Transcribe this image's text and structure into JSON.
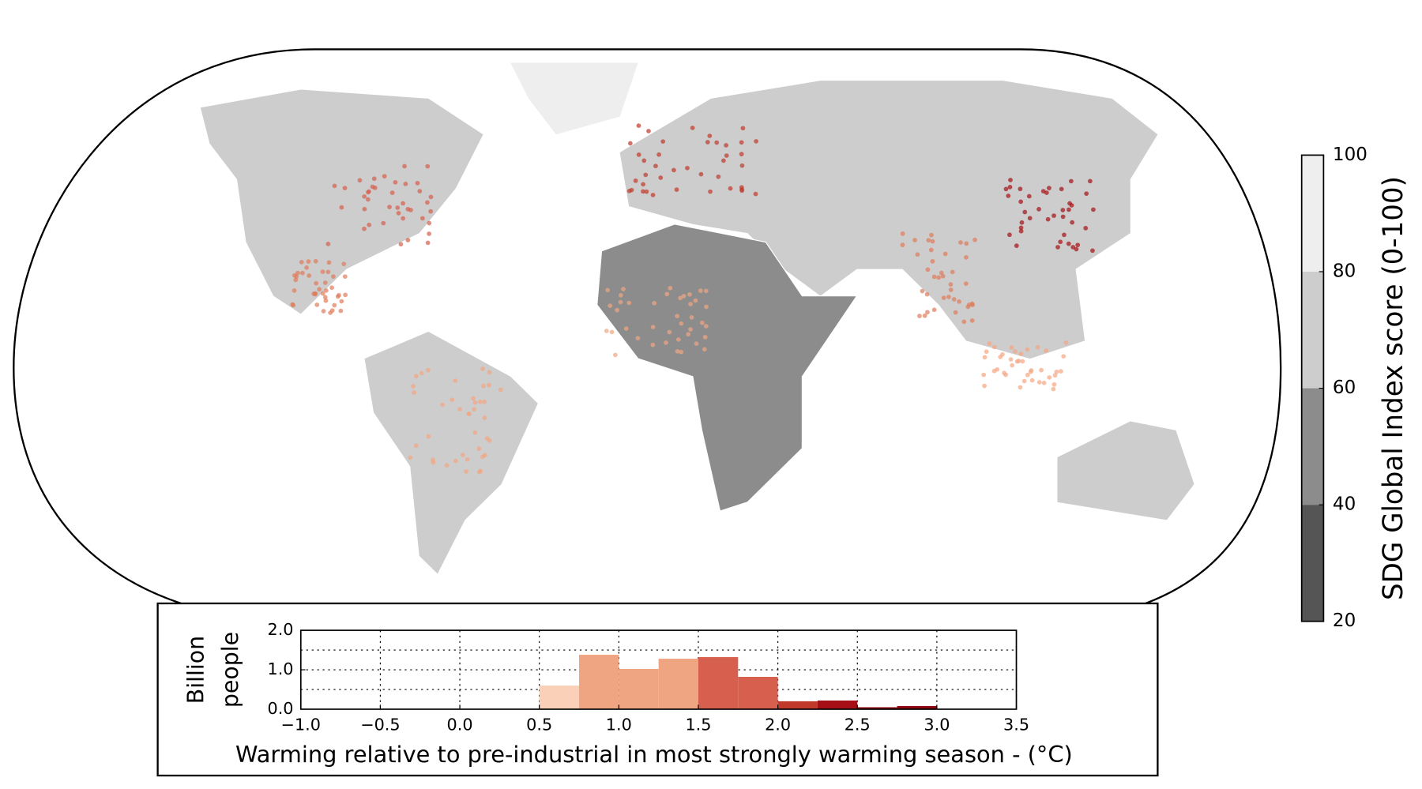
{
  "chart_data": [
    {
      "type": "histogram",
      "xlabel": "Warming relative to pre-industrial in most strongly warming season - (°C)",
      "ylabel": [
        "Billion",
        "people"
      ],
      "bins": [
        0.5,
        0.75,
        1.0,
        1.25,
        1.5,
        1.75,
        2.0,
        2.25,
        2.5,
        2.75,
        3.0
      ],
      "values": [
        0.6,
        1.38,
        1.02,
        1.28,
        1.32,
        0.82,
        0.2,
        0.22,
        0.05,
        0.08
      ],
      "colors": [
        "#fbd0b9",
        "#f0a582",
        "#f0a582",
        "#f0a582",
        "#d6604d",
        "#d6604d",
        "#c0392b",
        "#a50f15",
        "#8b0a0f",
        "#8b0a0f"
      ],
      "xlim": [
        -1.0,
        3.5
      ],
      "xticks": [
        {
          "value": -1.0,
          "label": "−1.0"
        },
        {
          "value": -0.5,
          "label": "−0.5"
        },
        {
          "value": 0.0,
          "label": "0.0"
        },
        {
          "value": 0.5,
          "label": "0.5"
        },
        {
          "value": 1.0,
          "label": "1.0"
        },
        {
          "value": 1.5,
          "label": "1.5"
        },
        {
          "value": 2.0,
          "label": "2.0"
        },
        {
          "value": 2.5,
          "label": "2.5"
        },
        {
          "value": 3.0,
          "label": "3.0"
        },
        {
          "value": 3.5,
          "label": "3.5"
        }
      ],
      "ylim": [
        0,
        2.0
      ],
      "yticks": [
        {
          "value": 0,
          "label": "0.0"
        },
        {
          "value": 1,
          "label": "1.0"
        },
        {
          "value": 2,
          "label": "2.0"
        }
      ],
      "ygrid": [
        0.5,
        1.0,
        1.5
      ],
      "grid": true
    },
    {
      "type": "colorbar",
      "label": "SDG Global Index score (0-100)",
      "ylim": [
        20,
        100
      ],
      "yticks": [
        20,
        40,
        60,
        80,
        100
      ],
      "colors": [
        "#555555",
        "#8c8c8c",
        "#cdcdcd",
        "#eeeeee"
      ]
    }
  ]
}
